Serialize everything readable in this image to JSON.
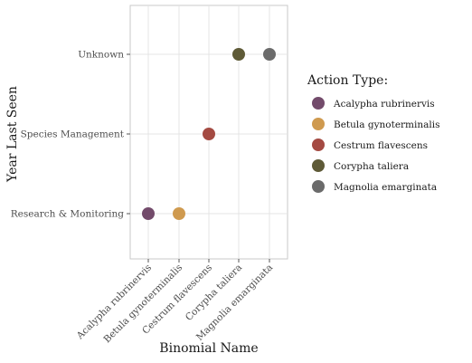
{
  "chart_data": {
    "type": "scatter",
    "title": "",
    "xlabel": "Binomial Name",
    "ylabel": "Year Last Seen",
    "categories_x": [
      "Acalypha rubrinervis",
      "Betula gynoterminalis",
      "Cestrum flavescens",
      "Corypha taliera",
      "Magnolia emarginata"
    ],
    "categories_y": [
      "Research & Monitoring",
      "Species Management",
      "Unknown"
    ],
    "points": [
      {
        "x": "Acalypha rubrinervis",
        "y": "Research & Monitoring",
        "group": "Acalypha rubrinervis"
      },
      {
        "x": "Betula gynoterminalis",
        "y": "Research & Monitoring",
        "group": "Betula gynoterminalis"
      },
      {
        "x": "Cestrum flavescens",
        "y": "Species Management",
        "group": "Cestrum flavescens"
      },
      {
        "x": "Corypha taliera",
        "y": "Unknown",
        "group": "Corypha taliera"
      },
      {
        "x": "Magnolia emarginata",
        "y": "Unknown",
        "group": "Magnolia emarginata"
      }
    ],
    "legend": {
      "title": "Action Type:",
      "position": "right",
      "items": [
        {
          "label": "Acalypha rubrinervis",
          "color": "#734b6b"
        },
        {
          "label": "Betula gynoterminalis",
          "color": "#cf9a4f"
        },
        {
          "label": "Cestrum flavescens",
          "color": "#a44a42"
        },
        {
          "label": "Corypha taliera",
          "color": "#5e5a37"
        },
        {
          "label": "Magnolia emarginata",
          "color": "#6b6b6b"
        }
      ]
    },
    "grid": true
  }
}
